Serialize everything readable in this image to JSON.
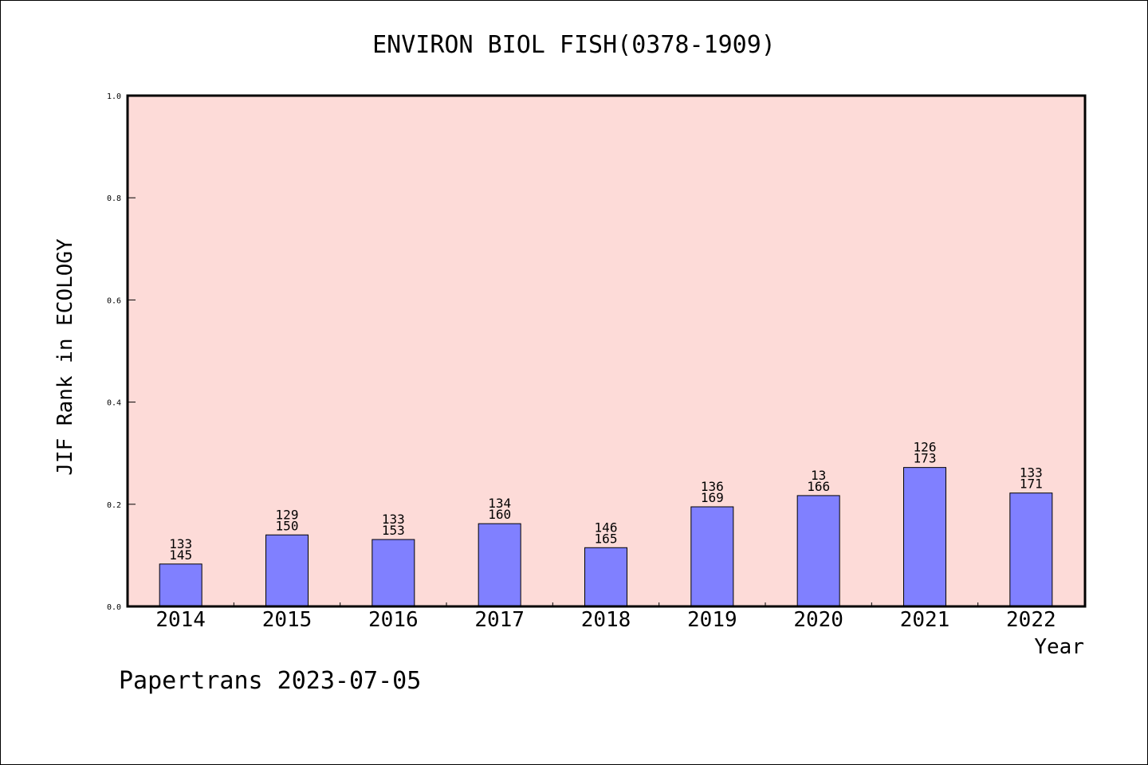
{
  "chart_data": {
    "type": "bar",
    "title": "ENVIRON BIOL FISH(0378-1909)",
    "xlabel": "Year",
    "ylabel": "JIF Rank in ECOLOGY",
    "ylim": [
      0,
      1.0
    ],
    "yticks": [
      "0.0",
      "0.2",
      "0.4",
      "0.6",
      "0.8",
      "1.0"
    ],
    "grid": false,
    "categories": [
      "2014",
      "2015",
      "2016",
      "2017",
      "2018",
      "2019",
      "2020",
      "2021",
      "2022"
    ],
    "values": [
      0.083,
      0.14,
      0.131,
      0.162,
      0.115,
      0.195,
      0.217,
      0.272,
      0.222
    ],
    "labels_top": [
      "133",
      "129",
      "133",
      "134",
      "146",
      "136",
      "13",
      "126",
      "133"
    ],
    "labels_bottom": [
      "145",
      "150",
      "153",
      "160",
      "165",
      "169",
      "166",
      "173",
      "171"
    ],
    "colors": {
      "plot_bg": "#fddbd8",
      "bar": "#8080ff",
      "axis": "#000000"
    }
  },
  "footer": {
    "credit": "Papertrans 2023-07-05"
  }
}
